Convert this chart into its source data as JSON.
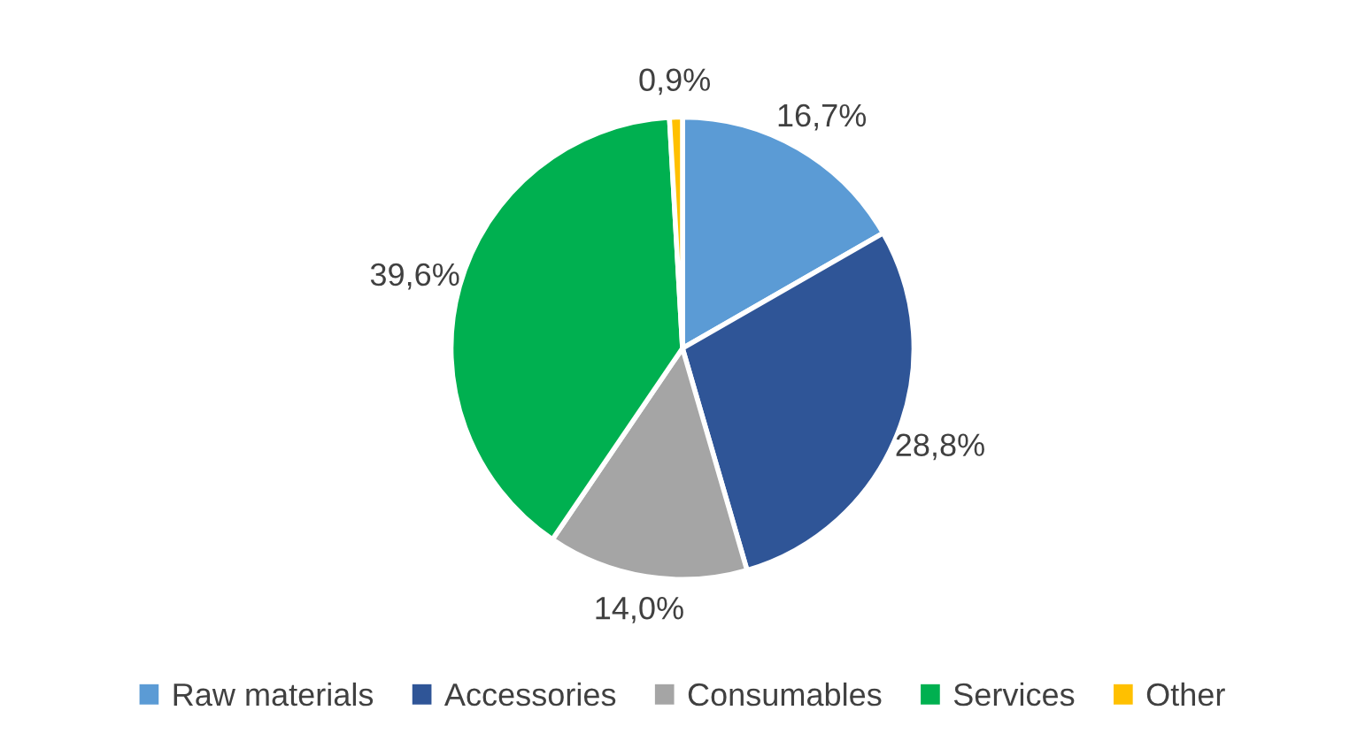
{
  "chart_data": {
    "type": "pie",
    "categories": [
      "Raw materials",
      "Accessories",
      "Consumables",
      "Services",
      "Other"
    ],
    "values": [
      16.7,
      28.8,
      14.0,
      39.6,
      0.9
    ],
    "value_labels": [
      "16,7%",
      "28,8%",
      "14,0%",
      "39,6%",
      "0,9%"
    ],
    "colors": [
      "#5b9bd5",
      "#2f5597",
      "#a5a5a5",
      "#00b050",
      "#ffc000"
    ],
    "legend": "bottom"
  }
}
